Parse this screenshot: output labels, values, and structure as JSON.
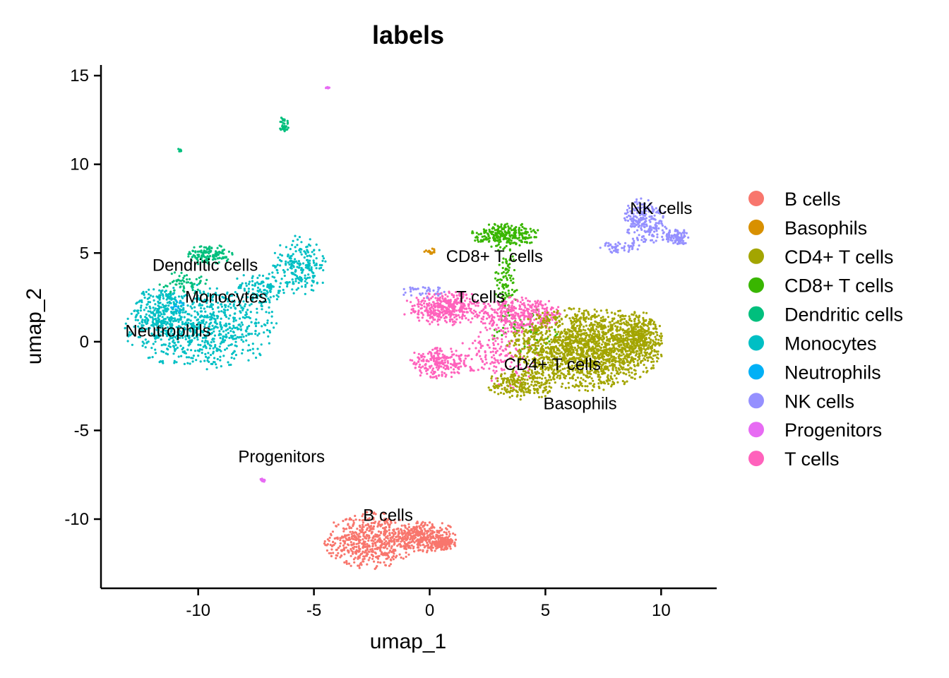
{
  "chart_data": {
    "type": "scatter",
    "title": "labels",
    "xlabel": "umap_1",
    "ylabel": "umap_2",
    "xlim": [
      -14.2,
      12.4
    ],
    "ylim": [
      -13.9,
      15.6
    ],
    "x_ticks": [
      -10,
      -5,
      0,
      5,
      10
    ],
    "x_tick_labels": [
      "-10",
      "-5",
      "0",
      "5",
      "10"
    ],
    "y_ticks": [
      15,
      10,
      5,
      0,
      -5,
      -10
    ],
    "y_tick_labels": [
      "15",
      "10",
      "5",
      "0",
      "-5",
      "-10"
    ],
    "grid": false,
    "legend_position": "right",
    "legend": [
      {
        "name": "B cells",
        "color": "#F8766D"
      },
      {
        "name": "Basophils",
        "color": "#D89000"
      },
      {
        "name": "CD4+ T cells",
        "color": "#A3A500"
      },
      {
        "name": "CD8+ T cells",
        "color": "#39B600"
      },
      {
        "name": "Dendritic cells",
        "color": "#00BF7D"
      },
      {
        "name": "Monocytes",
        "color": "#00BFC4"
      },
      {
        "name": "Neutrophils",
        "color": "#00B0F6"
      },
      {
        "name": "NK cells",
        "color": "#9590FF"
      },
      {
        "name": "Progenitors",
        "color": "#E76BF3"
      },
      {
        "name": "T cells",
        "color": "#FF62BC"
      }
    ],
    "cluster_labels": [
      {
        "text": "Dendritic cells",
        "x": -9.7,
        "y": 4.0
      },
      {
        "text": "Monocytes",
        "x": -8.8,
        "y": 2.2
      },
      {
        "text": "Neutrophils",
        "x": -11.3,
        "y": 0.3
      },
      {
        "text": "CD8+ T cells",
        "x": 2.8,
        "y": 4.5
      },
      {
        "text": "T cells",
        "x": 2.2,
        "y": 2.2
      },
      {
        "text": "NK cells",
        "x": 10.0,
        "y": 7.2
      },
      {
        "text": "CD4+ T cells",
        "x": 5.3,
        "y": -1.6
      },
      {
        "text": "Basophils",
        "x": 6.5,
        "y": -3.8
      },
      {
        "text": "Progenitors",
        "x": -6.4,
        "y": -6.8
      },
      {
        "text": "B cells",
        "x": -1.8,
        "y": -10.1
      }
    ],
    "clusters": [
      {
        "name": "Monocytes",
        "color": "#00BFC4",
        "n": 1300,
        "ellipses": [
          {
            "cx": -9.9,
            "cy": 0.8,
            "rx": 3.1,
            "ry": 2.2,
            "w": 0.6
          },
          {
            "cx": -11.6,
            "cy": 1.7,
            "rx": 1.2,
            "ry": 1.3,
            "w": 0.15
          },
          {
            "cx": -5.6,
            "cy": 4.3,
            "rx": 1.1,
            "ry": 1.6,
            "w": 0.16
          },
          {
            "cx": -7.3,
            "cy": 3.0,
            "rx": 1.2,
            "ry": 0.9,
            "w": 0.09
          }
        ]
      },
      {
        "name": "Dendritic cells",
        "color": "#00BF7D",
        "n": 240,
        "ellipses": [
          {
            "cx": -9.5,
            "cy": 4.9,
            "rx": 0.9,
            "ry": 0.55,
            "w": 0.55
          },
          {
            "cx": -10.6,
            "cy": 3.3,
            "rx": 1.0,
            "ry": 0.6,
            "w": 0.25
          },
          {
            "cx": -6.3,
            "cy": 12.2,
            "rx": 0.2,
            "ry": 0.45,
            "w": 0.15
          },
          {
            "cx": -10.8,
            "cy": 10.8,
            "rx": 0.08,
            "ry": 0.08,
            "w": 0.05
          }
        ]
      },
      {
        "name": "Neutrophils",
        "color": "#00B0F6",
        "n": 12,
        "ellipses": [
          {
            "cx": -10.9,
            "cy": 2.0,
            "rx": 0.3,
            "ry": 0.3,
            "w": 1.0
          }
        ]
      },
      {
        "name": "CD8+ T cells",
        "color": "#39B600",
        "n": 420,
        "ellipses": [
          {
            "cx": 3.3,
            "cy": 6.0,
            "rx": 1.4,
            "ry": 0.65,
            "w": 0.6
          },
          {
            "cx": 3.3,
            "cy": 3.3,
            "rx": 0.5,
            "ry": 2.2,
            "w": 0.25
          },
          {
            "cx": 4.2,
            "cy": 0.5,
            "rx": 1.5,
            "ry": 1.3,
            "w": 0.15
          }
        ]
      },
      {
        "name": "T cells",
        "color": "#FF62BC",
        "n": 1100,
        "ellipses": [
          {
            "cx": 0.7,
            "cy": 1.9,
            "rx": 1.8,
            "ry": 0.9,
            "w": 0.35
          },
          {
            "cx": 0.4,
            "cy": -1.2,
            "rx": 1.3,
            "ry": 0.8,
            "w": 0.2
          },
          {
            "cx": 3.8,
            "cy": 1.5,
            "rx": 1.8,
            "ry": 1.0,
            "w": 0.3
          },
          {
            "cx": 3.0,
            "cy": -0.8,
            "rx": 1.6,
            "ry": 1.8,
            "w": 0.15
          }
        ]
      },
      {
        "name": "CD4+ T cells",
        "color": "#A3A500",
        "n": 2200,
        "ellipses": [
          {
            "cx": 6.7,
            "cy": -0.4,
            "rx": 3.1,
            "ry": 2.2,
            "w": 0.75
          },
          {
            "cx": 9.0,
            "cy": 0.2,
            "rx": 1.0,
            "ry": 1.4,
            "w": 0.15
          },
          {
            "cx": 4.0,
            "cy": -2.4,
            "rx": 1.4,
            "ry": 0.8,
            "w": 0.1
          }
        ]
      },
      {
        "name": "NK cells",
        "color": "#9590FF",
        "n": 420,
        "ellipses": [
          {
            "cx": 9.3,
            "cy": 6.8,
            "rx": 0.9,
            "ry": 1.2,
            "w": 0.55
          },
          {
            "cx": 10.6,
            "cy": 5.9,
            "rx": 0.6,
            "ry": 0.45,
            "w": 0.25
          },
          {
            "cx": 8.3,
            "cy": 5.3,
            "rx": 0.9,
            "ry": 0.35,
            "w": 0.12
          },
          {
            "cx": -0.2,
            "cy": 2.8,
            "rx": 1.0,
            "ry": 0.3,
            "w": 0.08
          }
        ]
      },
      {
        "name": "B cells",
        "color": "#F8766D",
        "n": 1000,
        "ellipses": [
          {
            "cx": -2.6,
            "cy": -11.2,
            "rx": 1.8,
            "ry": 1.5,
            "w": 0.55
          },
          {
            "cx": -0.2,
            "cy": -11.0,
            "rx": 1.4,
            "ry": 0.8,
            "w": 0.35
          },
          {
            "cx": 0.6,
            "cy": -11.4,
            "rx": 0.5,
            "ry": 0.3,
            "w": 0.1
          }
        ]
      },
      {
        "name": "Basophils",
        "color": "#D89000",
        "n": 14,
        "ellipses": [
          {
            "cx": 0.0,
            "cy": 5.1,
            "rx": 0.3,
            "ry": 0.2,
            "w": 1.0
          }
        ]
      },
      {
        "name": "Progenitors",
        "color": "#E76BF3",
        "n": 24,
        "ellipses": [
          {
            "cx": -7.2,
            "cy": -7.8,
            "rx": 0.15,
            "ry": 0.12,
            "w": 0.6
          },
          {
            "cx": -4.4,
            "cy": 14.3,
            "rx": 0.08,
            "ry": 0.06,
            "w": 0.4
          }
        ]
      }
    ]
  }
}
